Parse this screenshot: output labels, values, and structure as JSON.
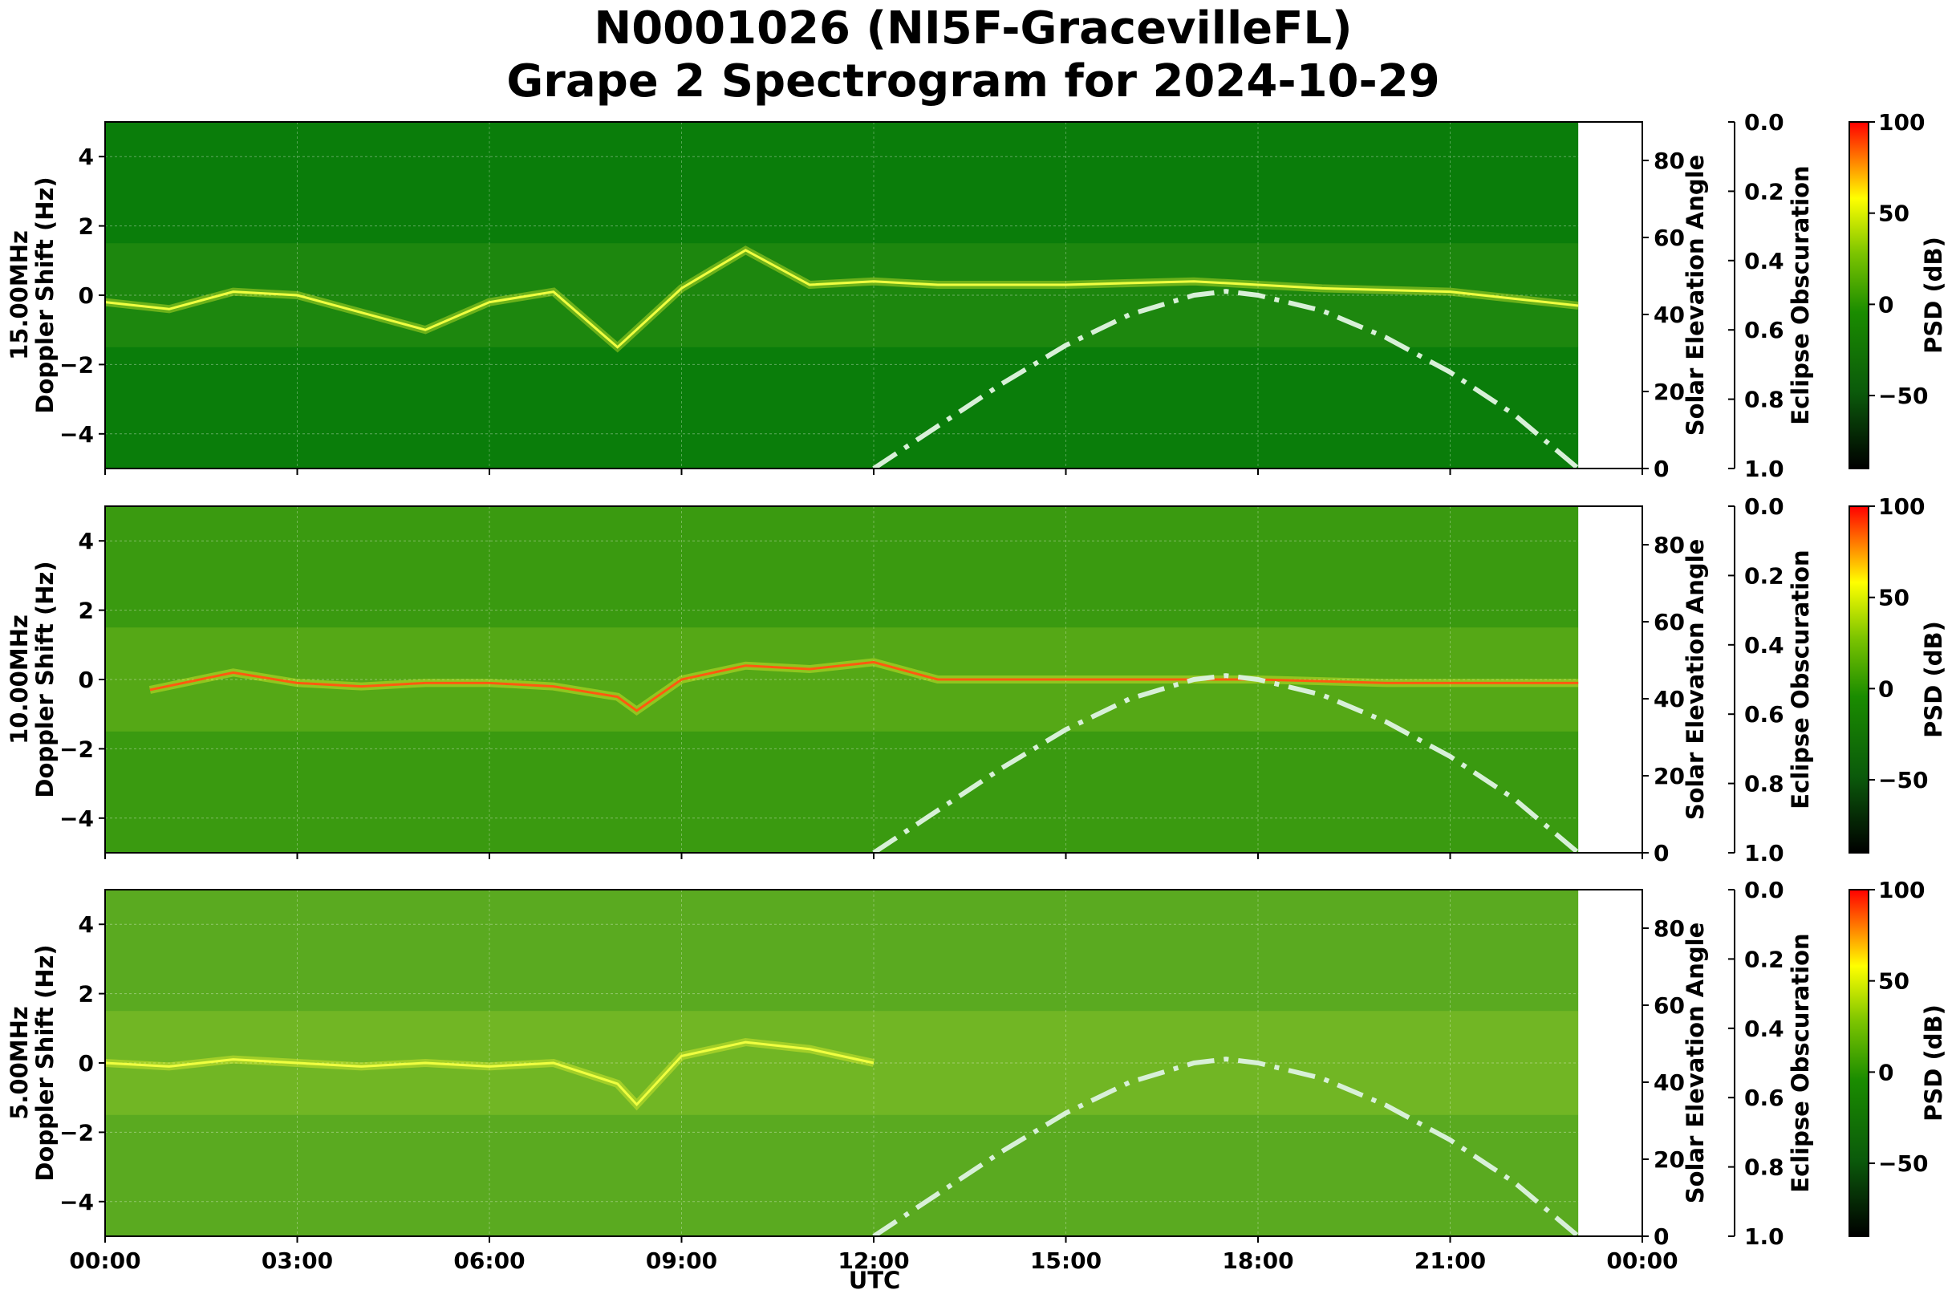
{
  "title_line1": "N0001026 (NI5F-GracevilleFL)",
  "title_line2": "Grape 2 Spectrogram for 2024-10-29",
  "x_label": "UTC",
  "x_ticks": [
    "00:00",
    "03:00",
    "06:00",
    "09:00",
    "12:00",
    "15:00",
    "18:00",
    "21:00",
    "00:00"
  ],
  "y_ticks": [
    "4",
    "2",
    "0",
    "−2",
    "−4"
  ],
  "elev_label": "Solar Elevation Angle",
  "elev_ticks": [
    "80",
    "60",
    "40",
    "20",
    "0"
  ],
  "eclipse_label": "Eclipse Obscuration",
  "eclipse_ticks": [
    "0.0",
    "0.2",
    "0.4",
    "0.6",
    "0.8",
    "1.0"
  ],
  "psd_label": "PSD (dB)",
  "psd_ticks": [
    "100",
    "50",
    "0",
    "−50"
  ],
  "chart_data": {
    "type": "heatmap",
    "title": "N0001026 (NI5F-GracevilleFL) Grape 2 Spectrogram for 2024-10-29",
    "xlabel": "UTC",
    "x_range_hours": [
      0,
      24
    ],
    "data_end_hours": 23,
    "colormap": [
      "#000000",
      "#006400",
      "#2e8b00",
      "#ffff00",
      "#ff0000"
    ],
    "colorbar_range_db": [
      -90,
      100
    ],
    "elevation_curve": {
      "style": "dash-dot",
      "color": "#d8f0d8",
      "hours": [
        12.0,
        13.0,
        14.0,
        15.0,
        16.0,
        17.0,
        17.5,
        18.0,
        19.0,
        20.0,
        21.0,
        22.0,
        23.0
      ],
      "degrees": [
        0,
        11,
        22,
        32,
        40,
        45,
        46,
        45,
        41,
        34,
        25,
        14,
        0
      ]
    },
    "panels": [
      {
        "frequency": "15.00MHz",
        "ylabel": "Doppler Shift (Hz)",
        "ylim": [
          -5,
          5
        ],
        "elev_ylim": [
          0,
          90
        ],
        "eclipse_ylim": [
          1.0,
          0.0
        ],
        "background": "#0a7d0a",
        "doppler_trace_hz": [
          [
            0,
            -0.2
          ],
          [
            1,
            -0.4
          ],
          [
            2,
            0.1
          ],
          [
            3,
            0
          ],
          [
            4,
            -0.5
          ],
          [
            5,
            -1.0
          ],
          [
            6,
            -0.2
          ],
          [
            7,
            0.1
          ],
          [
            8,
            -1.5
          ],
          [
            9,
            0.2
          ],
          [
            10,
            1.3
          ],
          [
            11,
            0.3
          ],
          [
            12,
            0.4
          ],
          [
            13,
            0.3
          ],
          [
            15,
            0.3
          ],
          [
            17,
            0.4
          ],
          [
            19,
            0.2
          ],
          [
            21,
            0.1
          ],
          [
            23,
            -0.3
          ]
        ]
      },
      {
        "frequency": "10.00MHz",
        "ylabel": "Doppler Shift (Hz)",
        "ylim": [
          -5,
          5
        ],
        "elev_ylim": [
          0,
          90
        ],
        "eclipse_ylim": [
          1.0,
          0.0
        ],
        "background": "#3a9a10",
        "doppler_trace_hz": [
          [
            0.7,
            -0.3
          ],
          [
            2,
            0.2
          ],
          [
            3,
            -0.1
          ],
          [
            4,
            -0.2
          ],
          [
            5,
            -0.1
          ],
          [
            6,
            -0.1
          ],
          [
            7,
            -0.2
          ],
          [
            8,
            -0.5
          ],
          [
            8.3,
            -0.9
          ],
          [
            9,
            0
          ],
          [
            10,
            0.4
          ],
          [
            11,
            0.3
          ],
          [
            12,
            0.5
          ],
          [
            13,
            0
          ],
          [
            16,
            0
          ],
          [
            18,
            0
          ],
          [
            20,
            -0.1
          ],
          [
            23,
            -0.1
          ]
        ]
      },
      {
        "frequency": "5.00MHz",
        "ylabel": "Doppler Shift (Hz)",
        "ylim": [
          -5,
          5
        ],
        "elev_ylim": [
          0,
          90
        ],
        "eclipse_ylim": [
          1.0,
          0.0
        ],
        "background": "#5aaa20",
        "doppler_trace_hz": [
          [
            0,
            0
          ],
          [
            1,
            -0.1
          ],
          [
            2,
            0.1
          ],
          [
            3,
            0
          ],
          [
            4,
            -0.1
          ],
          [
            5,
            0
          ],
          [
            6,
            -0.1
          ],
          [
            7,
            0
          ],
          [
            8,
            -0.6
          ],
          [
            8.3,
            -1.2
          ],
          [
            9,
            0.2
          ],
          [
            10,
            0.6
          ],
          [
            11,
            0.4
          ],
          [
            12,
            0
          ]
        ]
      }
    ]
  }
}
